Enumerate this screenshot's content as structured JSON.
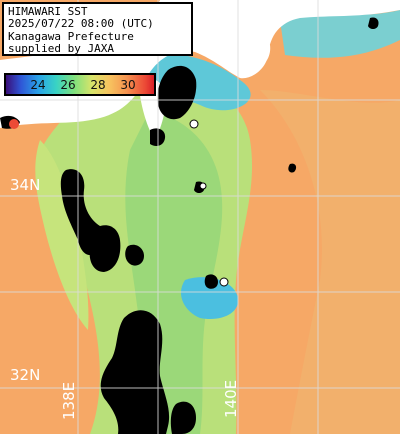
{
  "header": {
    "lines": [
      "HIMAWARI SST",
      "2025/07/22 08:00 (UTC)",
      "Kanagawa Prefecture",
      "supplied by JAXA"
    ]
  },
  "colorbar": {
    "ticks": [
      "24",
      "26",
      "28",
      "30"
    ],
    "colors": [
      "#3a0f7a",
      "#2f56d6",
      "#2aa3e8",
      "#39d3c4",
      "#7fe07d",
      "#d8e46a",
      "#f7c35f",
      "#f5914f",
      "#ec4a36"
    ]
  },
  "grid": {
    "lat_labels": [
      "34N",
      "32N"
    ],
    "lon_labels": [
      "138E",
      "140E"
    ]
  },
  "palette": {
    "warm_sea": "#f6a866",
    "warm_sea_light": "#f4bd73",
    "cool_sea": "#a6dc78",
    "cool_sea_light": "#c9e57c",
    "cold_coast": "#4bbfe0",
    "land": "#ffffff",
    "cloud": "#000000",
    "gridline": "#dcdcdc"
  }
}
